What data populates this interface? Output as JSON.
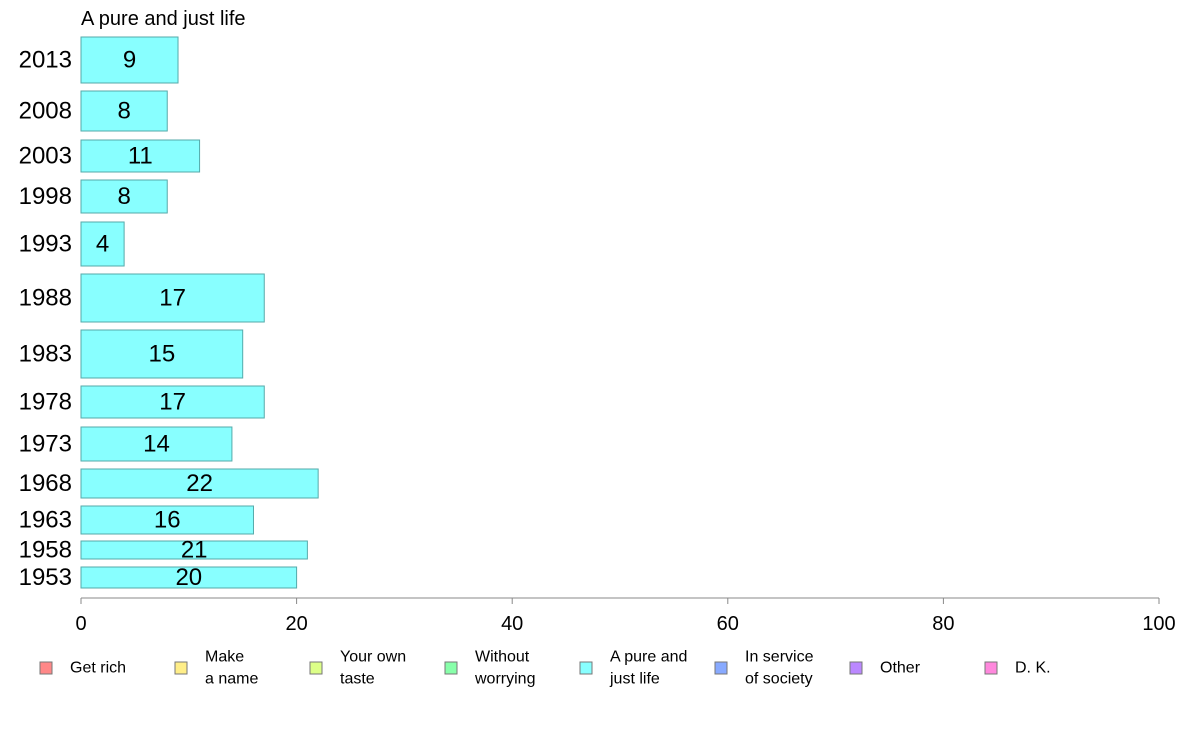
{
  "chart_data": {
    "type": "bar",
    "orientation": "horizontal",
    "title": "A pure and just life",
    "categories": [
      "2013",
      "2008",
      "2003",
      "1998",
      "1993",
      "1988",
      "1983",
      "1978",
      "1973",
      "1968",
      "1963",
      "1958",
      "1953"
    ],
    "values": [
      9,
      8,
      11,
      8,
      4,
      17,
      15,
      17,
      14,
      22,
      16,
      21,
      20
    ],
    "bar_color": "#88ffff",
    "bar_stroke": "#55aaaa",
    "xlim": [
      0,
      100
    ],
    "xticks": [
      0,
      20,
      40,
      60,
      80,
      100
    ],
    "grid": false,
    "legend_position": "bottom",
    "legend": [
      {
        "lines": [
          "Get rich"
        ],
        "color": "#ff8888"
      },
      {
        "lines": [
          "Make",
          "a name"
        ],
        "color": "#ffee88"
      },
      {
        "lines": [
          "Your own",
          "taste"
        ],
        "color": "#ddff88"
      },
      {
        "lines": [
          "Without",
          "worrying"
        ],
        "color": "#88ffaa"
      },
      {
        "lines": [
          "A pure and",
          "just life"
        ],
        "color": "#88ffff"
      },
      {
        "lines": [
          "In service",
          "of society"
        ],
        "color": "#88aaff"
      },
      {
        "lines": [
          "Other"
        ],
        "color": "#bb88ff"
      },
      {
        "lines": [
          "D. K."
        ],
        "color": "#ff88dd"
      }
    ]
  }
}
